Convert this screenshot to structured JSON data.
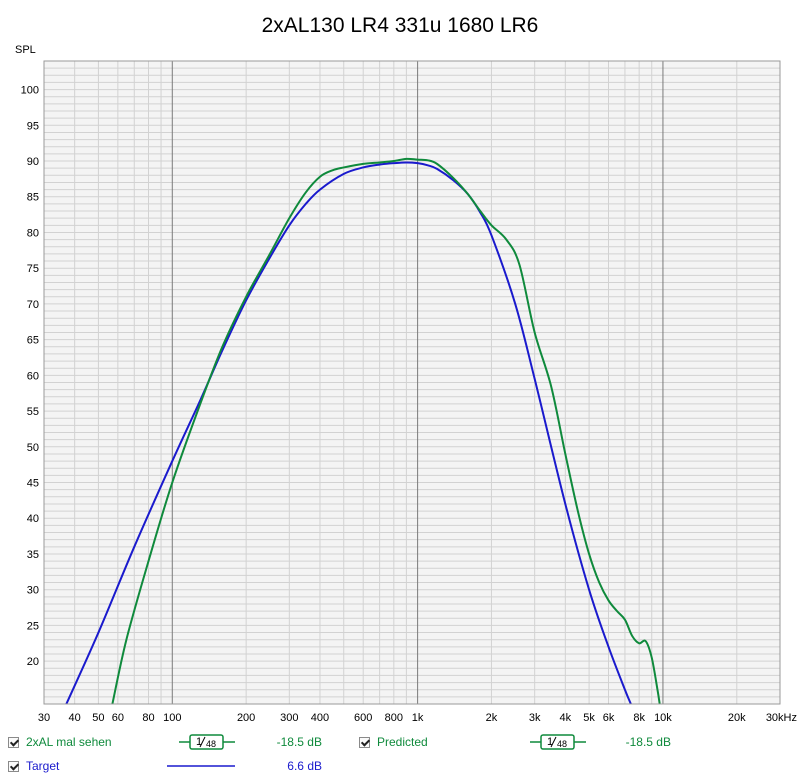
{
  "chart_data": {
    "type": "line",
    "title": "2xAL130 LR4 331u 1680 LR6",
    "ylabel": "SPL",
    "xlabel": "",
    "x_scale": "log",
    "xlim": [
      30,
      30000
    ],
    "ylim": [
      14,
      104
    ],
    "grid": true,
    "x_tick_labels": [
      "30",
      "40",
      "50",
      "60",
      "80",
      "100",
      "200",
      "300",
      "400",
      "600",
      "800",
      "1k",
      "2k",
      "3k",
      "4k",
      "5k",
      "6k",
      "8k",
      "10k",
      "20k",
      "30kHz"
    ],
    "x_tick_values": [
      30,
      40,
      50,
      60,
      80,
      100,
      200,
      300,
      400,
      600,
      800,
      1000,
      2000,
      3000,
      4000,
      5000,
      6000,
      8000,
      10000,
      20000,
      30000
    ],
    "y_tick_labels": [
      "20",
      "25",
      "30",
      "35",
      "40",
      "45",
      "50",
      "55",
      "60",
      "65",
      "70",
      "75",
      "80",
      "85",
      "90",
      "95",
      "100"
    ],
    "y_tick_values": [
      20,
      25,
      30,
      35,
      40,
      45,
      50,
      55,
      60,
      65,
      70,
      75,
      80,
      85,
      90,
      95,
      100
    ],
    "series": [
      {
        "name": "Target",
        "color": "#1a1acd",
        "x": [
          37,
          50,
          70,
          100,
          130,
          160,
          200,
          250,
          300,
          350,
          400,
          500,
          600,
          700,
          800,
          900,
          1000,
          1100,
          1200,
          1400,
          1600,
          1800,
          2000,
          2500,
          3000,
          4000,
          5000,
          6000,
          7000,
          7400
        ],
        "y": [
          14,
          24,
          36,
          48,
          56.5,
          63.5,
          70.5,
          76.5,
          81,
          84,
          86,
          88.2,
          89.1,
          89.5,
          89.7,
          89.8,
          89.7,
          89.4,
          88.9,
          87.3,
          85.4,
          82.8,
          79.6,
          70,
          59.5,
          42,
          30,
          22,
          16,
          14
        ]
      },
      {
        "name": "Predicted",
        "color": "#0f8a3c",
        "x": [
          57,
          65,
          80,
          100,
          130,
          160,
          200,
          250,
          300,
          350,
          400,
          450,
          500,
          600,
          700,
          800,
          900,
          1000,
          1100,
          1200,
          1400,
          1600,
          1800,
          2000,
          2300,
          2600,
          3000,
          3500,
          4000,
          4500,
          5000,
          5500,
          6000,
          6500,
          7000,
          7500,
          8000,
          8500,
          9000,
          9500,
          9700
        ],
        "y": [
          14,
          23,
          34,
          45,
          56,
          64,
          71,
          77,
          82,
          85.6,
          87.8,
          88.7,
          89.1,
          89.6,
          89.8,
          90,
          90.3,
          90.2,
          90.1,
          89.6,
          87.6,
          85.4,
          83,
          81,
          79,
          75.5,
          66,
          58.5,
          49,
          41,
          35,
          31,
          28.5,
          27,
          25.8,
          23.5,
          22.5,
          22.8,
          20.5,
          16,
          14
        ]
      },
      {
        "name": "2xAL mal sehen",
        "color": "#0f8a3c",
        "x": [],
        "y": []
      }
    ]
  },
  "legend": {
    "items": [
      {
        "label": "2xAL mal sehen",
        "smoothing_num": "1",
        "smoothing_den": "48",
        "offset": "-18.5 dB",
        "color": "#0f8a3c"
      },
      {
        "label": "Predicted",
        "smoothing_num": "1",
        "smoothing_den": "48",
        "offset": "-18.5 dB",
        "color": "#0f8a3c"
      },
      {
        "label": "Target",
        "offset": "6.6 dB",
        "color": "#1a1acd"
      }
    ]
  },
  "colors": {
    "plot_bg": "#f4f4f4",
    "grid_minor": "#d2d2d2",
    "grid_major": "#7a7a7a",
    "frame": "#9a9a9a"
  }
}
